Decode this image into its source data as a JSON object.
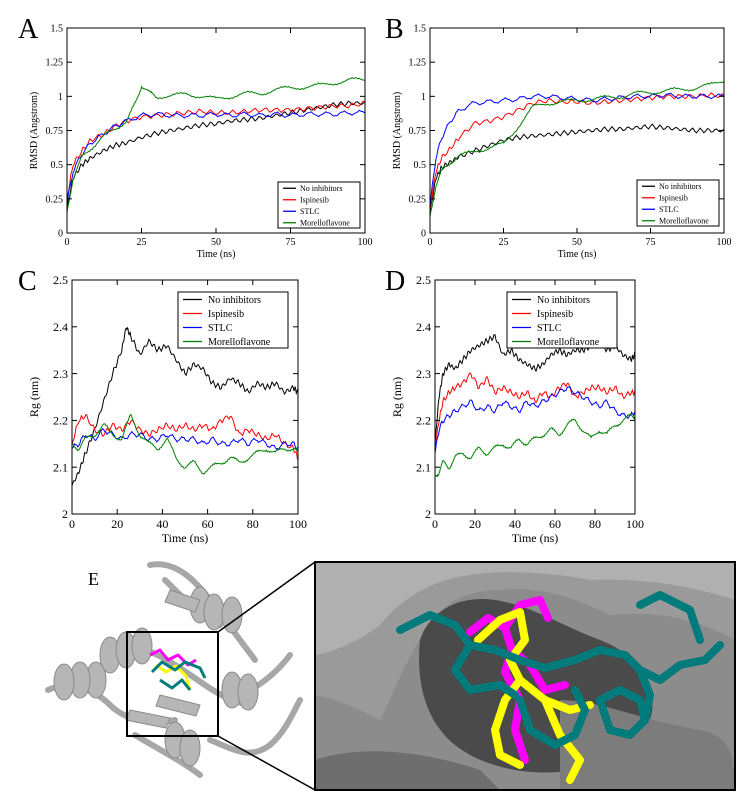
{
  "panel_letters": {
    "a": "A",
    "b": "B",
    "c": "C",
    "d": "D",
    "e": "E"
  },
  "colors": {
    "no_inhibitors": "#000000",
    "ispinesib": "#ff0000",
    "stlc": "#0000ff",
    "morelloflavone": "#008000",
    "protein": "#a7a7a7",
    "surface": "#8c8c8c",
    "ligand_teal": "#007b7b",
    "ligand_magenta": "#ff00ff",
    "ligand_yellow": "#ffff00"
  },
  "chart_data": [
    {
      "panel": "A",
      "type": "line",
      "xlabel": "Time (ns)",
      "ylabel": "RMSD (Angstrom)",
      "xlim": [
        0,
        100
      ],
      "ylim": [
        0,
        1.5
      ],
      "xticks": [
        "0",
        "25",
        "50",
        "75",
        "100"
      ],
      "yticks": [
        "0",
        "0.25",
        "0.5",
        "0.75",
        "1",
        "1.25",
        "1.5"
      ],
      "legend_position": "bottom-right",
      "grid": false,
      "series": [
        {
          "name": "No inhibitors",
          "x": [
            0,
            2,
            5,
            8,
            12,
            16,
            20,
            25,
            30,
            35,
            40,
            45,
            50,
            55,
            60,
            65,
            70,
            75,
            80,
            85,
            90,
            95,
            100
          ],
          "y": [
            0.18,
            0.4,
            0.5,
            0.55,
            0.6,
            0.64,
            0.66,
            0.7,
            0.73,
            0.75,
            0.77,
            0.79,
            0.8,
            0.82,
            0.83,
            0.84,
            0.86,
            0.88,
            0.9,
            0.92,
            0.94,
            0.95,
            0.95
          ]
        },
        {
          "name": "Ispinesib",
          "x": [
            0,
            2,
            5,
            8,
            12,
            16,
            20,
            25,
            30,
            35,
            40,
            45,
            50,
            55,
            60,
            65,
            70,
            75,
            80,
            85,
            90,
            95,
            100
          ],
          "y": [
            0.25,
            0.5,
            0.6,
            0.68,
            0.72,
            0.78,
            0.82,
            0.85,
            0.86,
            0.87,
            0.88,
            0.89,
            0.88,
            0.88,
            0.89,
            0.9,
            0.9,
            0.9,
            0.91,
            0.92,
            0.93,
            0.93,
            0.95
          ]
        },
        {
          "name": "STLC",
          "x": [
            0,
            2,
            5,
            8,
            12,
            16,
            20,
            25,
            30,
            35,
            40,
            45,
            50,
            55,
            60,
            65,
            70,
            75,
            80,
            85,
            90,
            95,
            100
          ],
          "y": [
            0.22,
            0.45,
            0.58,
            0.66,
            0.72,
            0.78,
            0.82,
            0.86,
            0.87,
            0.86,
            0.86,
            0.86,
            0.87,
            0.86,
            0.87,
            0.86,
            0.87,
            0.86,
            0.87,
            0.87,
            0.87,
            0.88,
            0.88
          ]
        },
        {
          "name": "Morelloflavone",
          "x": [
            0,
            2,
            5,
            8,
            12,
            16,
            20,
            23,
            25,
            28,
            30,
            35,
            40,
            45,
            50,
            55,
            60,
            65,
            70,
            75,
            80,
            85,
            90,
            95,
            100
          ],
          "y": [
            0.15,
            0.4,
            0.55,
            0.62,
            0.7,
            0.76,
            0.82,
            0.95,
            1.08,
            1.02,
            1.0,
            1.0,
            1.02,
            1.0,
            0.98,
            1.0,
            1.02,
            1.02,
            1.05,
            1.06,
            1.07,
            1.08,
            1.1,
            1.12,
            1.12
          ]
        }
      ]
    },
    {
      "panel": "B",
      "type": "line",
      "xlabel": "Time (ns)",
      "ylabel": "RMSD (Angstrom)",
      "xlim": [
        0,
        100
      ],
      "ylim": [
        0,
        1.5
      ],
      "xticks": [
        "0",
        "25",
        "50",
        "75",
        "100"
      ],
      "yticks": [
        "0",
        "0.25",
        "0.5",
        "0.75",
        "1",
        "1.25",
        "1.5"
      ],
      "legend_position": "bottom-right",
      "grid": false,
      "series": [
        {
          "name": "No inhibitors",
          "x": [
            0,
            2,
            4,
            7,
            10,
            15,
            20,
            25,
            30,
            35,
            40,
            45,
            50,
            55,
            60,
            65,
            70,
            75,
            80,
            85,
            90,
            95,
            100
          ],
          "y": [
            0.15,
            0.4,
            0.48,
            0.52,
            0.56,
            0.6,
            0.64,
            0.68,
            0.7,
            0.71,
            0.72,
            0.73,
            0.74,
            0.75,
            0.76,
            0.76,
            0.77,
            0.78,
            0.77,
            0.76,
            0.75,
            0.75,
            0.75
          ]
        },
        {
          "name": "Ispinesib",
          "x": [
            0,
            2,
            4,
            7,
            10,
            15,
            20,
            25,
            30,
            35,
            40,
            45,
            50,
            55,
            60,
            65,
            70,
            75,
            80,
            85,
            90,
            95,
            100
          ],
          "y": [
            0.18,
            0.45,
            0.55,
            0.62,
            0.7,
            0.8,
            0.82,
            0.85,
            0.9,
            0.95,
            0.97,
            0.96,
            0.96,
            0.95,
            0.96,
            0.97,
            0.98,
            0.99,
            1.0,
            1.0,
            1.0,
            1.01,
            1.0
          ]
        },
        {
          "name": "STLC",
          "x": [
            0,
            2,
            4,
            7,
            10,
            15,
            20,
            25,
            30,
            35,
            40,
            45,
            50,
            55,
            60,
            65,
            70,
            75,
            80,
            85,
            90,
            95,
            100
          ],
          "y": [
            0.2,
            0.55,
            0.7,
            0.82,
            0.9,
            0.95,
            0.96,
            0.97,
            0.98,
            1.0,
            1.0,
            0.99,
            0.98,
            0.97,
            0.98,
            0.99,
            1.0,
            1.0,
            1.01,
            1.0,
            1.0,
            1.0,
            1.0
          ]
        },
        {
          "name": "Morelloflavone",
          "x": [
            0,
            2,
            4,
            7,
            10,
            15,
            20,
            25,
            30,
            35,
            40,
            45,
            50,
            55,
            60,
            65,
            70,
            75,
            80,
            85,
            90,
            95,
            100
          ],
          "y": [
            0.12,
            0.35,
            0.45,
            0.52,
            0.56,
            0.6,
            0.62,
            0.65,
            0.78,
            0.92,
            0.95,
            0.96,
            0.97,
            0.98,
            0.99,
            1.0,
            1.02,
            1.03,
            1.04,
            1.05,
            1.06,
            1.08,
            1.12
          ]
        }
      ]
    },
    {
      "panel": "C",
      "type": "line",
      "xlabel": "Time (ns)",
      "ylabel": "Rg (nm)",
      "xlim": [
        0,
        100
      ],
      "ylim": [
        2,
        2.5
      ],
      "xticks": [
        "0",
        "20",
        "40",
        "60",
        "80",
        "100"
      ],
      "yticks": [
        "2",
        "2.1",
        "2.2",
        "2.3",
        "2.4",
        "2.5"
      ],
      "legend_position": "top-right",
      "grid": false,
      "series": [
        {
          "name": "No inhibitors",
          "x": [
            0,
            3,
            6,
            10,
            14,
            18,
            22,
            24,
            26,
            30,
            34,
            38,
            42,
            46,
            50,
            54,
            58,
            62,
            66,
            70,
            74,
            78,
            82,
            86,
            90,
            94,
            98,
            100
          ],
          "y": [
            2.06,
            2.09,
            2.13,
            2.18,
            2.24,
            2.3,
            2.35,
            2.4,
            2.38,
            2.34,
            2.37,
            2.35,
            2.36,
            2.33,
            2.3,
            2.32,
            2.31,
            2.28,
            2.27,
            2.29,
            2.28,
            2.26,
            2.28,
            2.27,
            2.28,
            2.26,
            2.27,
            2.26
          ]
        },
        {
          "name": "Ispinesib",
          "x": [
            0,
            3,
            6,
            10,
            14,
            18,
            22,
            26,
            30,
            34,
            38,
            42,
            46,
            50,
            54,
            58,
            62,
            66,
            70,
            74,
            78,
            82,
            86,
            90,
            94,
            98,
            100
          ],
          "y": [
            2.15,
            2.2,
            2.21,
            2.18,
            2.17,
            2.19,
            2.18,
            2.2,
            2.18,
            2.17,
            2.18,
            2.19,
            2.18,
            2.19,
            2.18,
            2.19,
            2.18,
            2.2,
            2.21,
            2.17,
            2.18,
            2.17,
            2.16,
            2.17,
            2.15,
            2.14,
            2.12
          ]
        },
        {
          "name": "STLC",
          "x": [
            0,
            3,
            6,
            10,
            14,
            18,
            22,
            26,
            30,
            34,
            38,
            42,
            46,
            50,
            54,
            58,
            62,
            66,
            70,
            74,
            78,
            82,
            86,
            90,
            94,
            98,
            100
          ],
          "y": [
            2.14,
            2.15,
            2.17,
            2.16,
            2.18,
            2.17,
            2.16,
            2.17,
            2.17,
            2.16,
            2.16,
            2.17,
            2.16,
            2.16,
            2.16,
            2.15,
            2.16,
            2.15,
            2.15,
            2.16,
            2.15,
            2.16,
            2.15,
            2.14,
            2.15,
            2.15,
            2.14
          ]
        },
        {
          "name": "Morelloflavone",
          "x": [
            0,
            3,
            6,
            10,
            14,
            18,
            22,
            26,
            30,
            34,
            38,
            42,
            46,
            50,
            54,
            58,
            62,
            66,
            70,
            74,
            78,
            82,
            86,
            90,
            94,
            98,
            100
          ],
          "y": [
            2.15,
            2.14,
            2.16,
            2.17,
            2.19,
            2.17,
            2.16,
            2.21,
            2.17,
            2.15,
            2.14,
            2.16,
            2.12,
            2.1,
            2.11,
            2.09,
            2.1,
            2.11,
            2.12,
            2.11,
            2.12,
            2.13,
            2.14,
            2.13,
            2.14,
            2.14,
            2.13
          ]
        }
      ]
    },
    {
      "panel": "D",
      "type": "line",
      "xlabel": "Time (ns)",
      "ylabel": "Rg (nm)",
      "xlim": [
        0,
        100
      ],
      "ylim": [
        2,
        2.5
      ],
      "xticks": [
        "0",
        "20",
        "40",
        "60",
        "80",
        "100"
      ],
      "yticks": [
        "2",
        "2.1",
        "2.2",
        "2.3",
        "2.4",
        "2.5"
      ],
      "legend_position": "top-left",
      "grid": false,
      "series": [
        {
          "name": "No inhibitors",
          "x": [
            0,
            2,
            4,
            7,
            10,
            14,
            18,
            22,
            26,
            30,
            34,
            38,
            42,
            46,
            50,
            54,
            58,
            62,
            66,
            70,
            74,
            78,
            82,
            86,
            90,
            94,
            98,
            100
          ],
          "y": [
            2.15,
            2.25,
            2.3,
            2.32,
            2.31,
            2.33,
            2.35,
            2.36,
            2.37,
            2.38,
            2.34,
            2.35,
            2.33,
            2.32,
            2.31,
            2.32,
            2.34,
            2.35,
            2.34,
            2.35,
            2.35,
            2.36,
            2.37,
            2.35,
            2.36,
            2.34,
            2.33,
            2.34
          ]
        },
        {
          "name": "Ispinesib",
          "x": [
            0,
            2,
            4,
            7,
            10,
            14,
            18,
            22,
            26,
            30,
            34,
            38,
            42,
            46,
            50,
            54,
            58,
            62,
            66,
            70,
            74,
            78,
            82,
            86,
            90,
            94,
            98,
            100
          ],
          "y": [
            2.14,
            2.2,
            2.24,
            2.26,
            2.27,
            2.28,
            2.3,
            2.27,
            2.29,
            2.26,
            2.27,
            2.26,
            2.25,
            2.26,
            2.24,
            2.26,
            2.25,
            2.27,
            2.28,
            2.25,
            2.26,
            2.27,
            2.27,
            2.26,
            2.27,
            2.25,
            2.26,
            2.26
          ]
        },
        {
          "name": "STLC",
          "x": [
            0,
            2,
            4,
            7,
            10,
            14,
            18,
            22,
            26,
            30,
            34,
            38,
            42,
            46,
            50,
            54,
            58,
            62,
            66,
            70,
            74,
            78,
            82,
            86,
            90,
            94,
            98,
            100
          ],
          "y": [
            2.13,
            2.18,
            2.2,
            2.21,
            2.22,
            2.23,
            2.24,
            2.22,
            2.23,
            2.22,
            2.24,
            2.23,
            2.22,
            2.24,
            2.23,
            2.24,
            2.25,
            2.26,
            2.27,
            2.26,
            2.25,
            2.24,
            2.23,
            2.24,
            2.22,
            2.21,
            2.21,
            2.22
          ]
        },
        {
          "name": "Morelloflavone",
          "x": [
            0,
            2,
            4,
            7,
            10,
            14,
            18,
            22,
            26,
            30,
            34,
            38,
            42,
            46,
            50,
            54,
            58,
            62,
            66,
            70,
            74,
            78,
            82,
            86,
            90,
            94,
            98,
            100
          ],
          "y": [
            2.08,
            2.09,
            2.11,
            2.1,
            2.12,
            2.13,
            2.12,
            2.14,
            2.13,
            2.14,
            2.15,
            2.14,
            2.16,
            2.15,
            2.16,
            2.17,
            2.18,
            2.17,
            2.19,
            2.2,
            2.18,
            2.16,
            2.18,
            2.17,
            2.19,
            2.2,
            2.21,
            2.21
          ]
        }
      ]
    }
  ]
}
